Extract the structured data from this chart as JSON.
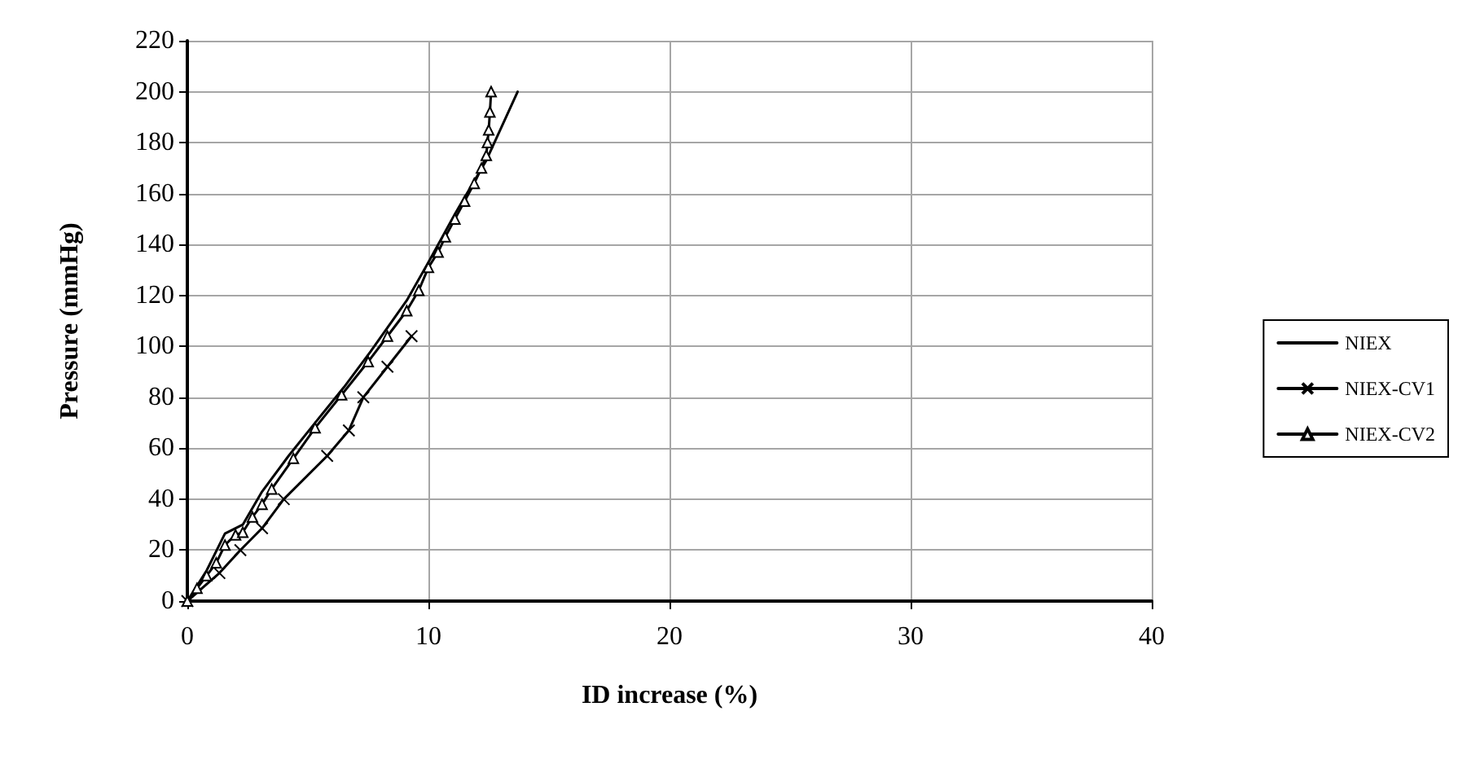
{
  "chart_data": {
    "type": "line",
    "xlabel": "ID increase (%)",
    "ylabel": "Pressure (mmHg)",
    "xlim": [
      0,
      40
    ],
    "xticks": [
      0,
      10,
      20,
      30,
      40
    ],
    "ylim": [
      0,
      220
    ],
    "yticks": [
      0,
      20,
      40,
      60,
      80,
      100,
      120,
      140,
      160,
      180,
      200,
      220
    ],
    "grid": true,
    "legend": "right",
    "series": [
      {
        "name": "NIEX",
        "color": "#000000",
        "marker": "none",
        "x": [
          0,
          0.8,
          1.56,
          2.3,
          3.1,
          4.2,
          5.3,
          6.5,
          7.6,
          9.1,
          10,
          11.1,
          12.4,
          13.7
        ],
        "values": [
          0,
          12,
          26.5,
          30,
          43,
          57,
          70,
          84,
          98,
          118,
          133,
          152,
          173,
          200
        ]
      },
      {
        "name": "NIEX-CV1",
        "color": "#000000",
        "marker": "cross",
        "x": [
          0,
          1.33,
          2.2,
          3.1,
          4,
          5.8,
          6.7,
          7.3,
          8.3,
          9.3
        ],
        "values": [
          0,
          11,
          20,
          28.6,
          40,
          57,
          67,
          80,
          92,
          104
        ]
      },
      {
        "name": "NIEX-CV2",
        "color": "#000000",
        "marker": "triangle",
        "x": [
          0,
          0.4,
          0.8,
          1.2,
          1.56,
          2,
          2.3,
          2.7,
          3.1,
          3.5,
          4.4,
          5.3,
          6.4,
          7.5,
          8.3,
          9.1,
          9.6,
          10,
          10.4,
          10.7,
          11.1,
          11.5,
          11.9,
          12.2,
          12.4,
          12.45,
          12.5,
          12.55,
          12.6
        ],
        "values": [
          0,
          5,
          10,
          15,
          22,
          26,
          27,
          33,
          38,
          44,
          56,
          68,
          81,
          94,
          104,
          114,
          122,
          131,
          137,
          143,
          150,
          157,
          164,
          170,
          175,
          180,
          185,
          192,
          200
        ]
      }
    ]
  }
}
